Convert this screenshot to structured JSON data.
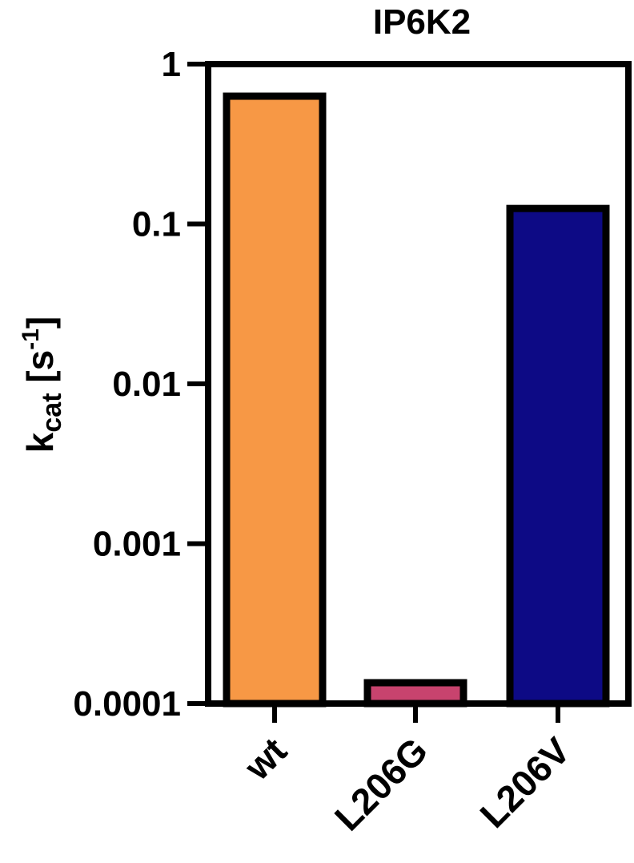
{
  "chart_data": {
    "type": "bar",
    "title": "IP6K2",
    "ylabel_main": "k",
    "ylabel_sub": "cat",
    "ylabel_unit_open": " [s",
    "ylabel_sup": "-1",
    "ylabel_unit_close": "]",
    "xlabel": "",
    "categories": [
      "wt",
      "L206G",
      "L206V"
    ],
    "values": [
      0.63,
      0.000135,
      0.125
    ],
    "colors": [
      "#F79845",
      "#C8436E",
      "#0D0A85"
    ],
    "yscale": "log",
    "ylim": [
      0.0001,
      1
    ],
    "yticks": [
      1,
      0.1,
      0.01,
      0.001,
      0.0001
    ],
    "ytick_labels": [
      "1",
      "0.1",
      "0.01",
      "0.001",
      "0.0001"
    ],
    "grid": false,
    "legend": "none"
  }
}
